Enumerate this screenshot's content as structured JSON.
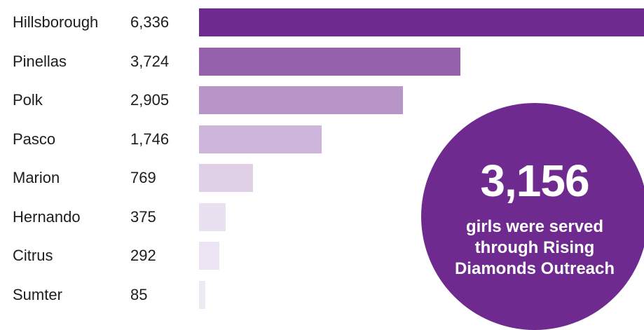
{
  "chart_data": {
    "type": "bar",
    "orientation": "horizontal",
    "categories": [
      "Hillsborough",
      "Pinellas",
      "Polk",
      "Pasco",
      "Marion",
      "Hernando",
      "Citrus",
      "Sumter"
    ],
    "values": [
      6336,
      3724,
      2905,
      1746,
      769,
      375,
      292,
      85
    ],
    "value_labels": [
      "6,336",
      "3,724",
      "2,905",
      "1,746",
      "769",
      "375",
      "292",
      "85"
    ],
    "bar_colors": [
      "#6e2a8e",
      "#9561ab",
      "#b795c6",
      "#cdb5db",
      "#dfd0e8",
      "#e9e0f0",
      "#ece4f2",
      "#efe9f4"
    ],
    "grid": false,
    "legend": "none"
  },
  "callout": {
    "number": "3,156",
    "text": "girls were served through Rising Diamonds Outreach",
    "color": "#6e2a8e"
  }
}
